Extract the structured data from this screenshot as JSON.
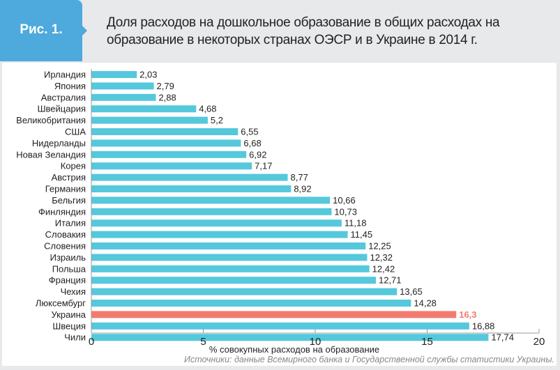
{
  "header": {
    "figure_label": "Рис. 1.",
    "title_line1": "Доля расходов на дошкольное образование в общих расходах на",
    "title_line2": "образование в некоторых странах ОЭСР и в Украине в 2014 г."
  },
  "source": "Источники: данные Всемирного банка и Государственной службы статистики Украины.",
  "colors": {
    "bar": "#55c8dc",
    "highlight": "#f47a6e",
    "tab": "#4ea9dc"
  },
  "chart_data": {
    "type": "bar",
    "orientation": "horizontal",
    "title": "Доля расходов на дошкольное образование в общих расходах на образование в некоторых странах ОЭСР и в Украине в 2014 г.",
    "xlabel": "% совокупных расходов на образование",
    "ylabel": "",
    "xlim": [
      0,
      20
    ],
    "xticks": [
      0,
      5,
      10,
      15,
      20
    ],
    "highlight": "Украина",
    "categories": [
      "Ирландия",
      "Япония",
      "Австралия",
      "Швейцария",
      "Великобритания",
      "США",
      "Нидерланды",
      "Новая Зеландия",
      "Корея",
      "Австрия",
      "Германия",
      "Бельгия",
      "Финляндия",
      "Италия",
      "Словакия",
      "Словения",
      "Израиль",
      "Польша",
      "Франция",
      "Чехия",
      "Люксембург",
      "Украина",
      "Швеция",
      "Чили"
    ],
    "values": [
      2.03,
      2.79,
      2.88,
      4.68,
      5.2,
      6.55,
      6.68,
      6.92,
      7.17,
      8.77,
      8.92,
      10.66,
      10.73,
      11.18,
      11.45,
      12.25,
      12.32,
      12.42,
      12.71,
      13.65,
      14.28,
      16.3,
      16.88,
      17.74
    ],
    "labels": [
      "2,03",
      "2,79",
      "2,88",
      "4,68",
      "5,2",
      "6,55",
      "6,68",
      "6,92",
      "7,17",
      "8,77",
      "8,92",
      "10,66",
      "10,73",
      "11,18",
      "11,45",
      "12,25",
      "12,32",
      "12,42",
      "12,71",
      "13,65",
      "14,28",
      "16,3",
      "16,88",
      "17,74"
    ]
  }
}
